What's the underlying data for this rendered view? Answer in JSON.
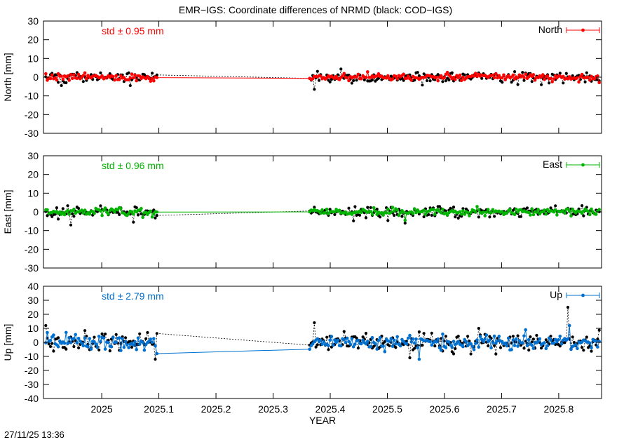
{
  "chart_data": {
    "type": "scatter",
    "title": "EMR−IGS: Coordinate differences of NRMD (black: COD−IGS)",
    "timestamp": "27/11/25 13:36",
    "xlabel": "YEAR",
    "xlim": [
      2024.898,
      2025.875
    ],
    "xticks": [
      {
        "v": 2025.0,
        "label": "2025"
      },
      {
        "v": 2025.1,
        "label": "2025.1"
      },
      {
        "v": 2025.2,
        "label": "2025.2"
      },
      {
        "v": 2025.3,
        "label": "2025.3"
      },
      {
        "v": 2025.4,
        "label": "2025.4"
      },
      {
        "v": 2025.5,
        "label": "2025.5"
      },
      {
        "v": 2025.6,
        "label": "2025.6"
      },
      {
        "v": 2025.7,
        "label": "2025.7"
      },
      {
        "v": 2025.8,
        "label": "2025.8"
      }
    ],
    "segments": [
      [
        2024.902,
        2025.098
      ],
      [
        2025.364,
        2025.872
      ]
    ],
    "sample_interval_years": 0.00274,
    "grid": false,
    "legend_position": "top-right-inside",
    "panels": [
      {
        "id": "north",
        "ylabel": "North [mm]",
        "ylim": [
          -30,
          30
        ],
        "ytick_step": 10,
        "std_label": "std ± 0.95 mm",
        "legend_label": "North",
        "color": "#ff0000",
        "series": [
          {
            "name": "COD−IGS",
            "color": "#000000",
            "mean_mm": 0,
            "std_mm": 1.35,
            "seed": 101
          },
          {
            "name": "EMR−IGS",
            "color": "#ff0000",
            "mean_mm": 0,
            "std_mm": 0.95,
            "seed": 202
          }
        ],
        "outliers": [
          [
            0,
            2025.372,
            -6.5
          ],
          [
            0,
            2024.93,
            -4.5
          ],
          [
            0,
            2025.56,
            -4.2
          ],
          [
            0,
            2025.77,
            -4.0
          ],
          [
            0,
            2025.05,
            -4.5
          ]
        ]
      },
      {
        "id": "east",
        "ylabel": "East [mm]",
        "ylim": [
          -30,
          30
        ],
        "ytick_step": 10,
        "std_label": "std ± 0.96 mm",
        "legend_label": "East",
        "color": "#00b400",
        "series": [
          {
            "name": "COD−IGS",
            "color": "#000000",
            "mean_mm": 0,
            "std_mm": 1.4,
            "seed": 303
          },
          {
            "name": "EMR−IGS",
            "color": "#00b400",
            "mean_mm": 0,
            "std_mm": 0.96,
            "seed": 404
          }
        ],
        "outliers": [
          [
            0,
            2024.945,
            -7.0
          ],
          [
            0,
            2025.53,
            -6.0
          ],
          [
            0,
            2025.055,
            -5.5
          ],
          [
            0,
            2025.44,
            -4.8
          ],
          [
            1,
            2025.53,
            -4.5
          ]
        ]
      },
      {
        "id": "up",
        "ylabel": "Up [mm]",
        "ylim": [
          -40,
          40
        ],
        "ytick_step": 10,
        "std_label": "std ± 2.79 mm",
        "legend_label": "Up",
        "color": "#0070d0",
        "series": [
          {
            "name": "COD−IGS",
            "color": "#000000",
            "mean_mm": 0,
            "std_mm": 3.4,
            "seed": 505
          },
          {
            "name": "EMR−IGS",
            "color": "#0070d0",
            "mean_mm": 0,
            "std_mm": 2.79,
            "seed": 606
          }
        ],
        "outliers": [
          [
            0,
            2025.815,
            25.0
          ],
          [
            1,
            2025.818,
            12.0
          ],
          [
            0,
            2025.372,
            14.0
          ],
          [
            0,
            2025.095,
            -12.0
          ],
          [
            1,
            2025.1,
            -8.0
          ],
          [
            0,
            2025.54,
            -11.0
          ],
          [
            1,
            2025.555,
            -12.0
          ],
          [
            0,
            2024.903,
            12.0
          ],
          [
            1,
            2024.905,
            7.0
          ],
          [
            0,
            2025.66,
            10.0
          ]
        ]
      }
    ]
  }
}
